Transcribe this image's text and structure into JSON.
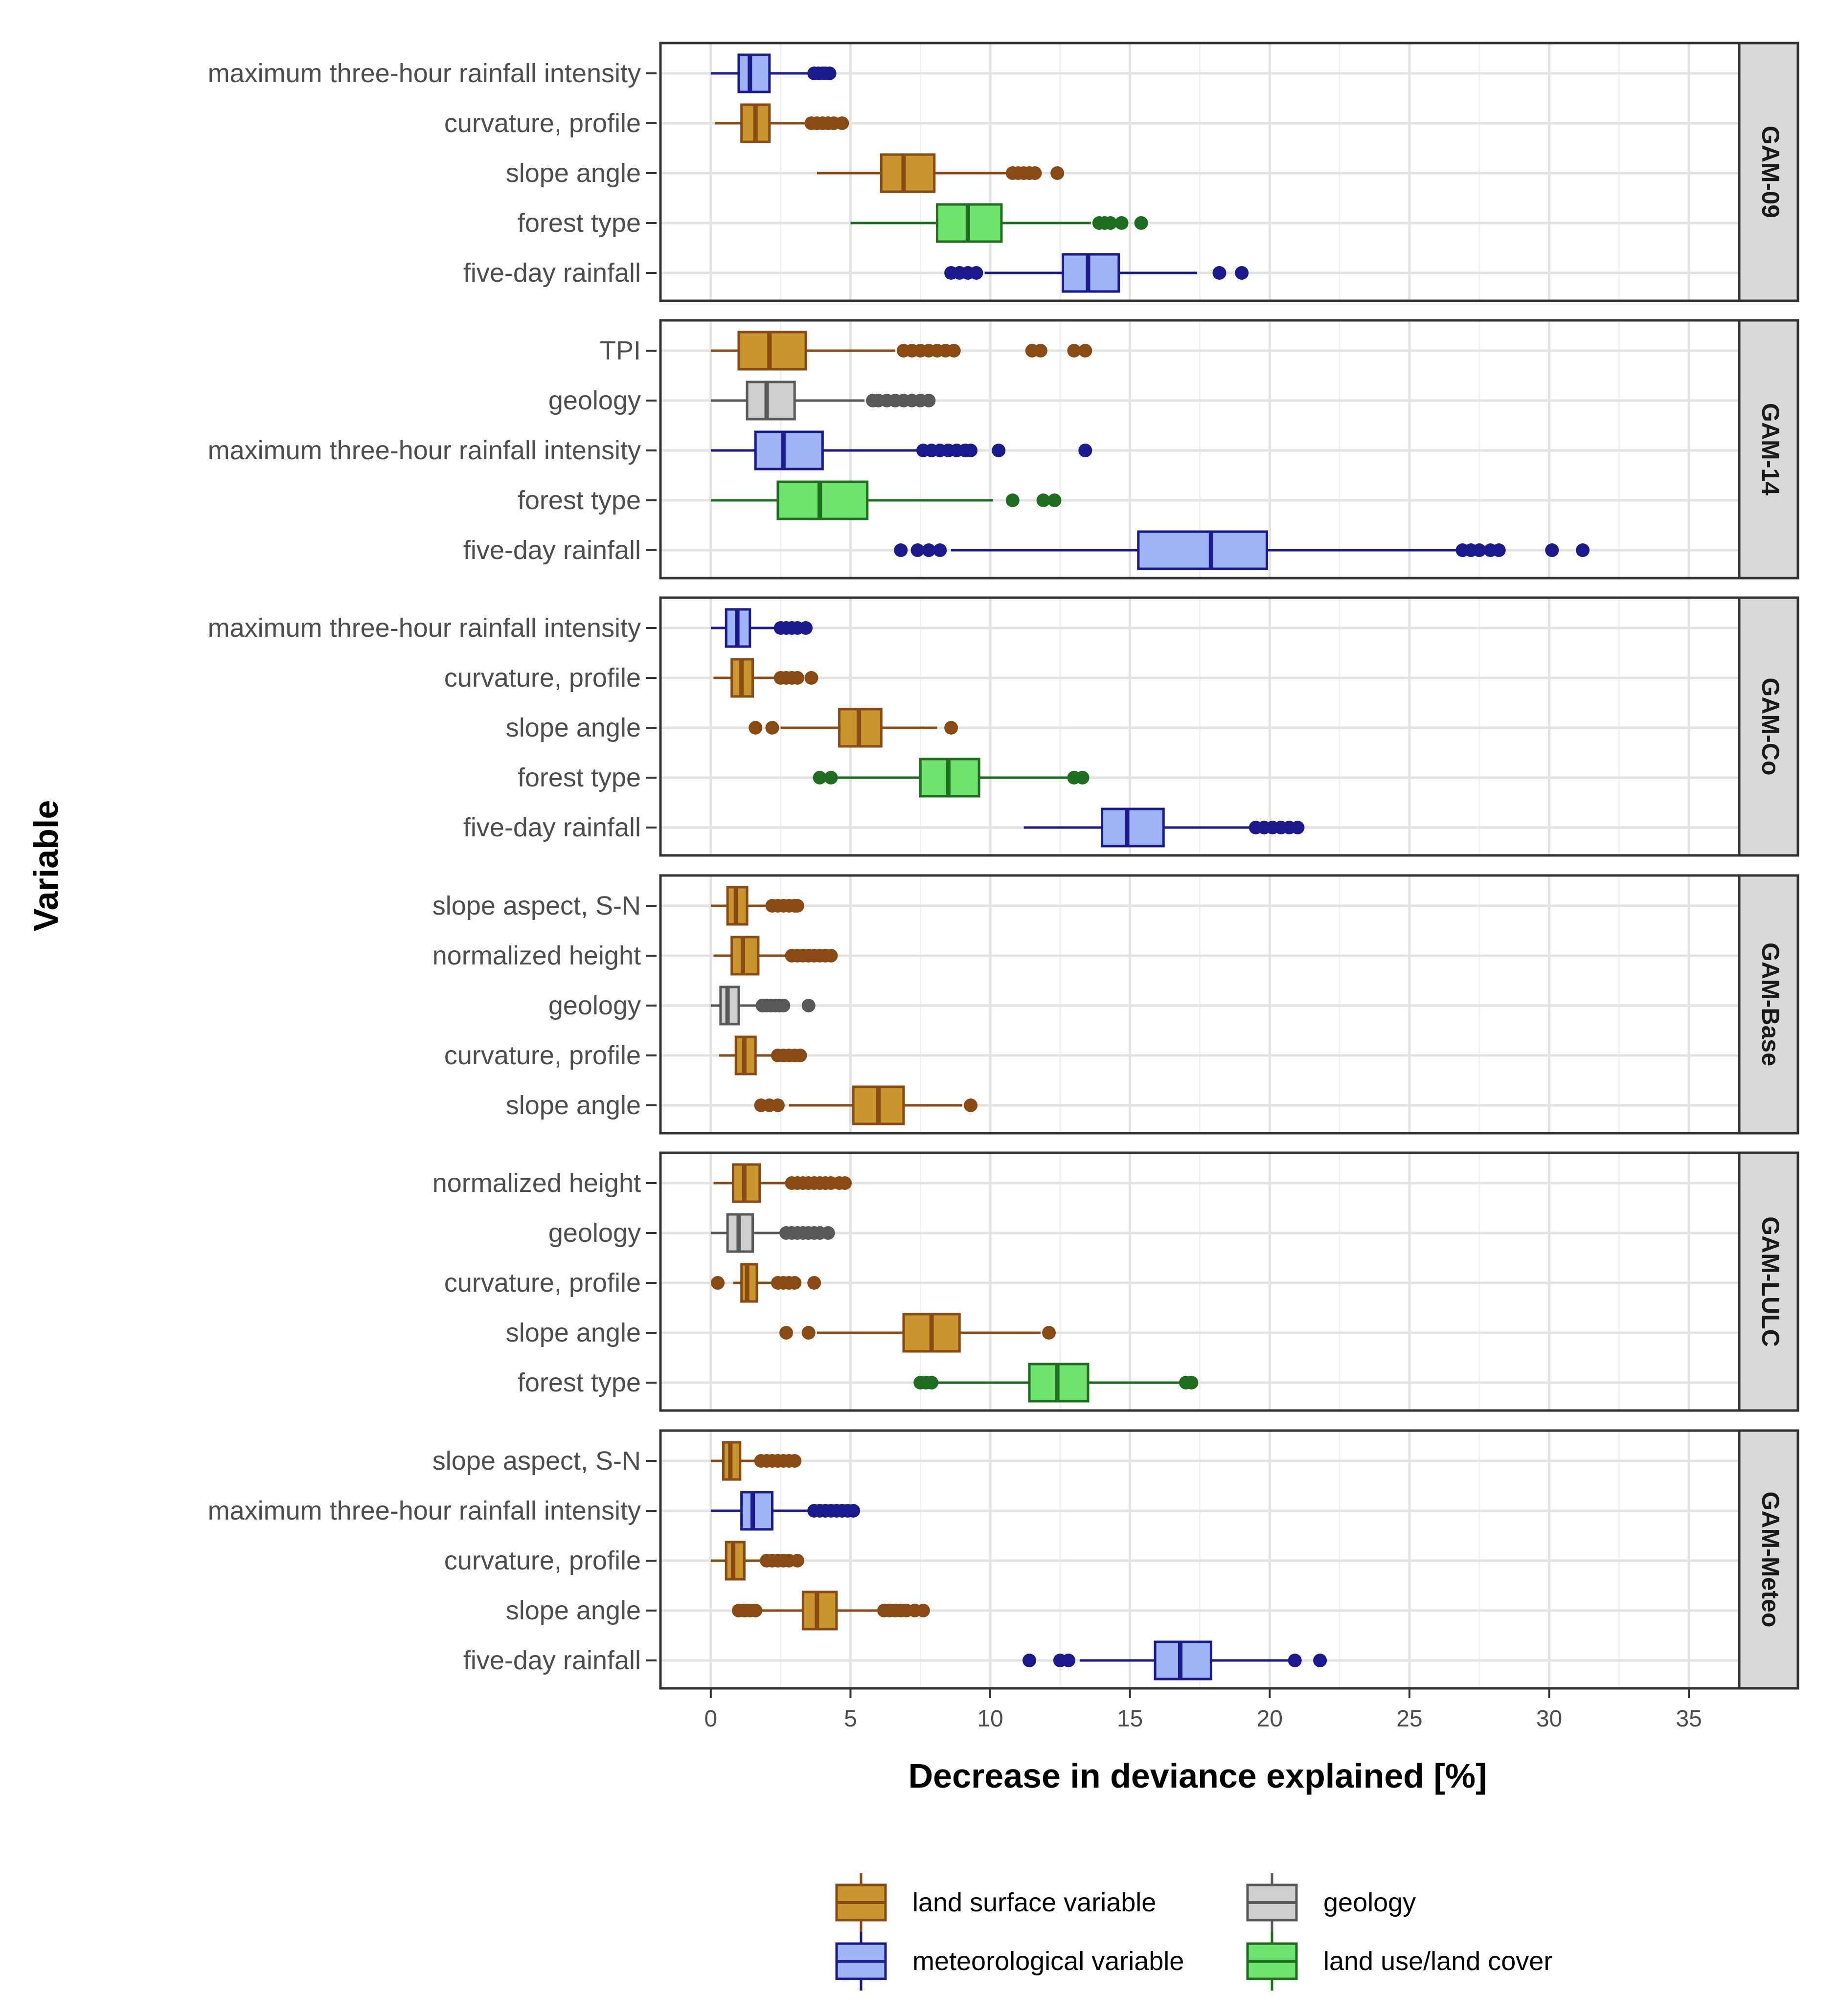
{
  "chart_data": {
    "type": "boxplot",
    "orientation": "horizontal",
    "xlabel": "Decrease in deviance explained [%]",
    "ylabel": "Variable",
    "xlim": [
      -1.8,
      36.8
    ],
    "xticks": [
      0,
      5,
      10,
      15,
      20,
      25,
      30,
      35
    ],
    "grid": true,
    "categories_colors": {
      "land surface variable": {
        "fill": "#c8952e",
        "stroke": "#8a4a14"
      },
      "meteorological variable": {
        "fill": "#9eb4f5",
        "stroke": "#1a1a8c"
      },
      "geology": {
        "fill": "#cfcfcf",
        "stroke": "#595959"
      },
      "land use/land cover": {
        "fill": "#6ee36e",
        "stroke": "#1f6e1f"
      }
    },
    "legend": {
      "position": "bottom",
      "items": [
        {
          "label": "land surface variable",
          "category": "land surface variable"
        },
        {
          "label": "geology",
          "category": "geology"
        },
        {
          "label": "meteorological variable",
          "category": "meteorological variable"
        },
        {
          "label": "land use/land cover",
          "category": "land use/land cover"
        }
      ]
    },
    "panels": [
      {
        "model": "GAM-09",
        "rows": [
          {
            "variable": "maximum three-hour rainfall intensity",
            "category": "meteorological variable",
            "whisker_low": 0.0,
            "q1": 1.0,
            "median": 1.4,
            "q3": 2.1,
            "whisker_high": 3.6,
            "outliers": [
              3.7,
              3.85,
              4.0,
              4.1,
              4.25
            ]
          },
          {
            "variable": "curvature, profile",
            "category": "land surface variable",
            "whisker_low": 0.15,
            "q1": 1.1,
            "median": 1.6,
            "q3": 2.1,
            "whisker_high": 3.4,
            "outliers": [
              3.6,
              3.8,
              4.0,
              4.2,
              4.4,
              4.7
            ]
          },
          {
            "variable": "slope angle",
            "category": "land surface variable",
            "whisker_low": 3.8,
            "q1": 6.1,
            "median": 6.9,
            "q3": 8.0,
            "whisker_high": 10.6,
            "outliers": [
              10.8,
              11.0,
              11.2,
              11.4,
              11.6,
              12.4
            ]
          },
          {
            "variable": "forest type",
            "category": "land use/land cover",
            "whisker_low": 5.0,
            "q1": 8.1,
            "median": 9.2,
            "q3": 10.4,
            "whisker_high": 13.6,
            "outliers": [
              13.9,
              14.1,
              14.3,
              14.7,
              15.4
            ]
          },
          {
            "variable": "five-day rainfall",
            "category": "meteorological variable",
            "whisker_low": 9.8,
            "q1": 12.6,
            "median": 13.5,
            "q3": 14.6,
            "whisker_high": 17.4,
            "outliers": [
              8.6,
              8.9,
              9.2,
              9.5,
              18.2,
              19.0
            ]
          }
        ]
      },
      {
        "model": "GAM-14",
        "rows": [
          {
            "variable": "TPI",
            "category": "land surface variable",
            "whisker_low": 0.0,
            "q1": 1.0,
            "median": 2.1,
            "q3": 3.4,
            "whisker_high": 6.6,
            "outliers": [
              6.9,
              7.2,
              7.5,
              7.8,
              8.1,
              8.4,
              8.7,
              11.5,
              11.8,
              13.0,
              13.4
            ]
          },
          {
            "variable": "geology",
            "category": "geology",
            "whisker_low": 0.0,
            "q1": 1.3,
            "median": 2.0,
            "q3": 3.0,
            "whisker_high": 5.5,
            "outliers": [
              5.8,
              6.0,
              6.3,
              6.6,
              6.9,
              7.2,
              7.5,
              7.8
            ]
          },
          {
            "variable": "maximum three-hour rainfall intensity",
            "category": "meteorological variable",
            "whisker_low": 0.0,
            "q1": 1.6,
            "median": 2.6,
            "q3": 4.0,
            "whisker_high": 7.4,
            "outliers": [
              7.6,
              7.9,
              8.2,
              8.5,
              8.8,
              9.1,
              9.3,
              10.3,
              13.4
            ]
          },
          {
            "variable": "forest type",
            "category": "land use/land cover",
            "whisker_low": 0.0,
            "q1": 2.4,
            "median": 3.9,
            "q3": 5.6,
            "whisker_high": 10.1,
            "outliers": [
              10.8,
              11.9,
              12.3
            ]
          },
          {
            "variable": "five-day rainfall",
            "category": "meteorological variable",
            "whisker_low": 8.6,
            "q1": 15.3,
            "median": 17.9,
            "q3": 19.9,
            "whisker_high": 26.7,
            "outliers": [
              6.8,
              7.4,
              7.8,
              8.2,
              26.9,
              27.2,
              27.5,
              27.9,
              28.2,
              30.1,
              31.2
            ]
          }
        ]
      },
      {
        "model": "GAM-Co",
        "rows": [
          {
            "variable": "maximum three-hour rainfall intensity",
            "category": "meteorological variable",
            "whisker_low": 0.0,
            "q1": 0.55,
            "median": 0.95,
            "q3": 1.4,
            "whisker_high": 2.3,
            "outliers": [
              2.5,
              2.7,
              2.9,
              3.1,
              3.4
            ]
          },
          {
            "variable": "curvature, profile",
            "category": "land surface variable",
            "whisker_low": 0.1,
            "q1": 0.75,
            "median": 1.1,
            "q3": 1.5,
            "whisker_high": 2.3,
            "outliers": [
              2.5,
              2.7,
              2.9,
              3.1,
              3.6
            ]
          },
          {
            "variable": "slope angle",
            "category": "land surface variable",
            "whisker_low": 2.5,
            "q1": 4.6,
            "median": 5.3,
            "q3": 6.1,
            "whisker_high": 8.1,
            "outliers": [
              1.6,
              2.2,
              8.6
            ]
          },
          {
            "variable": "forest type",
            "category": "land use/land cover",
            "whisker_low": 4.4,
            "q1": 7.5,
            "median": 8.5,
            "q3": 9.6,
            "whisker_high": 12.8,
            "outliers": [
              3.9,
              4.3,
              13.0,
              13.3
            ]
          },
          {
            "variable": "five-day rainfall",
            "category": "meteorological variable",
            "whisker_low": 11.2,
            "q1": 14.0,
            "median": 14.9,
            "q3": 16.2,
            "whisker_high": 19.3,
            "outliers": [
              19.5,
              19.8,
              20.1,
              20.4,
              20.7,
              21.0
            ]
          }
        ]
      },
      {
        "model": "GAM-Base",
        "rows": [
          {
            "variable": "slope aspect, S-N",
            "category": "land surface variable",
            "whisker_low": 0.0,
            "q1": 0.6,
            "median": 0.9,
            "q3": 1.3,
            "whisker_high": 2.0,
            "outliers": [
              2.2,
              2.4,
              2.6,
              2.8,
              3.0,
              3.1
            ]
          },
          {
            "variable": "normalized height",
            "category": "land surface variable",
            "whisker_low": 0.1,
            "q1": 0.75,
            "median": 1.15,
            "q3": 1.7,
            "whisker_high": 2.7,
            "outliers": [
              2.9,
              3.1,
              3.3,
              3.5,
              3.7,
              3.9,
              4.1,
              4.3
            ]
          },
          {
            "variable": "geology",
            "category": "geology",
            "whisker_low": 0.0,
            "q1": 0.35,
            "median": 0.6,
            "q3": 1.0,
            "whisker_high": 1.7,
            "outliers": [
              1.85,
              2.0,
              2.15,
              2.3,
              2.45,
              2.6,
              3.5
            ]
          },
          {
            "variable": "curvature, profile",
            "category": "land surface variable",
            "whisker_low": 0.3,
            "q1": 0.9,
            "median": 1.2,
            "q3": 1.6,
            "whisker_high": 2.2,
            "outliers": [
              2.4,
              2.6,
              2.8,
              3.0,
              3.2
            ]
          },
          {
            "variable": "slope angle",
            "category": "land surface variable",
            "whisker_low": 2.8,
            "q1": 5.1,
            "median": 6.0,
            "q3": 6.9,
            "whisker_high": 9.0,
            "outliers": [
              1.8,
              2.1,
              2.4,
              9.3
            ]
          }
        ]
      },
      {
        "model": "GAM-LULC",
        "rows": [
          {
            "variable": "normalized height",
            "category": "land surface variable",
            "whisker_low": 0.1,
            "q1": 0.8,
            "median": 1.2,
            "q3": 1.75,
            "whisker_high": 2.7,
            "outliers": [
              2.9,
              3.1,
              3.3,
              3.5,
              3.7,
              3.9,
              4.1,
              4.3,
              4.6,
              4.8
            ]
          },
          {
            "variable": "geology",
            "category": "geology",
            "whisker_low": 0.0,
            "q1": 0.6,
            "median": 1.0,
            "q3": 1.5,
            "whisker_high": 2.5,
            "outliers": [
              2.7,
              2.9,
              3.1,
              3.3,
              3.5,
              3.7,
              3.9,
              4.2
            ]
          },
          {
            "variable": "curvature, profile",
            "category": "land surface variable",
            "whisker_low": 0.8,
            "q1": 1.1,
            "median": 1.3,
            "q3": 1.65,
            "whisker_high": 2.2,
            "outliers": [
              0.25,
              2.4,
              2.6,
              2.8,
              3.0,
              3.7
            ]
          },
          {
            "variable": "slope angle",
            "category": "land surface variable",
            "whisker_low": 3.8,
            "q1": 6.9,
            "median": 7.9,
            "q3": 8.9,
            "whisker_high": 11.8,
            "outliers": [
              2.7,
              3.5,
              12.1
            ]
          },
          {
            "variable": "forest type",
            "category": "land use/land cover",
            "whisker_low": 8.1,
            "q1": 11.4,
            "median": 12.4,
            "q3": 13.5,
            "whisker_high": 16.8,
            "outliers": [
              7.5,
              7.7,
              7.9,
              17.0,
              17.2
            ]
          }
        ]
      },
      {
        "model": "GAM-Meteo",
        "rows": [
          {
            "variable": "slope aspect, S-N",
            "category": "land surface variable",
            "whisker_low": 0.0,
            "q1": 0.45,
            "median": 0.7,
            "q3": 1.05,
            "whisker_high": 1.6,
            "outliers": [
              1.8,
              2.0,
              2.2,
              2.4,
              2.6,
              2.8,
              3.0
            ]
          },
          {
            "variable": "maximum three-hour rainfall intensity",
            "category": "meteorological variable",
            "whisker_low": 0.0,
            "q1": 1.1,
            "median": 1.5,
            "q3": 2.2,
            "whisker_high": 3.5,
            "outliers": [
              3.7,
              3.9,
              4.1,
              4.3,
              4.5,
              4.7,
              4.9,
              5.1
            ]
          },
          {
            "variable": "curvature, profile",
            "category": "land surface variable",
            "whisker_low": 0.0,
            "q1": 0.55,
            "median": 0.8,
            "q3": 1.2,
            "whisker_high": 1.8,
            "outliers": [
              2.0,
              2.2,
              2.4,
              2.6,
              2.8,
              3.1
            ]
          },
          {
            "variable": "slope angle",
            "category": "land surface variable",
            "whisker_low": 1.8,
            "q1": 3.3,
            "median": 3.8,
            "q3": 4.5,
            "whisker_high": 6.0,
            "outliers": [
              1.0,
              1.2,
              1.4,
              1.6,
              6.2,
              6.4,
              6.6,
              6.8,
              7.0,
              7.3,
              7.6
            ]
          },
          {
            "variable": "five-day rainfall",
            "category": "meteorological variable",
            "whisker_low": 13.2,
            "q1": 15.9,
            "median": 16.8,
            "q3": 17.9,
            "whisker_high": 20.7,
            "outliers": [
              11.4,
              12.5,
              12.8,
              20.9,
              21.8
            ]
          }
        ]
      }
    ]
  }
}
